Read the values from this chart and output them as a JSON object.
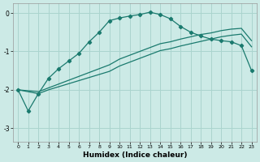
{
  "xlabel": "Humidex (Indice chaleur)",
  "background_color": "#cceae6",
  "grid_color": "#aad4ce",
  "line_color": "#1a7a6e",
  "xlim": [
    -0.5,
    23.5
  ],
  "ylim": [
    -3.35,
    0.25
  ],
  "yticks": [
    0,
    -1,
    -2,
    -3
  ],
  "xticks": [
    0,
    1,
    2,
    3,
    4,
    5,
    6,
    7,
    8,
    9,
    10,
    11,
    12,
    13,
    14,
    15,
    16,
    17,
    18,
    19,
    20,
    21,
    22,
    23
  ],
  "curve_peaked_x": [
    0,
    1,
    2,
    3,
    4,
    5,
    6,
    7,
    8,
    9,
    10,
    11,
    12,
    13,
    14,
    15,
    16,
    17,
    18,
    19,
    20,
    21,
    22,
    23
  ],
  "curve_peaked_y": [
    -2.0,
    -2.55,
    -2.1,
    -1.7,
    -1.45,
    -1.25,
    -1.05,
    -0.75,
    -0.5,
    -0.2,
    -0.13,
    -0.08,
    -0.04,
    0.02,
    -0.04,
    -0.15,
    -0.35,
    -0.5,
    -0.6,
    -0.68,
    -0.72,
    -0.75,
    -0.85,
    -1.5
  ],
  "curve_upper_x": [
    0,
    2,
    3,
    4,
    5,
    6,
    7,
    8,
    9,
    10,
    11,
    12,
    13,
    14,
    15,
    16,
    17,
    18,
    19,
    20,
    21,
    22,
    23
  ],
  "curve_upper_y": [
    -2.0,
    -2.05,
    -1.95,
    -1.85,
    -1.75,
    -1.65,
    -1.55,
    -1.45,
    -1.35,
    -1.2,
    -1.1,
    -1.0,
    -0.9,
    -0.8,
    -0.75,
    -0.68,
    -0.62,
    -0.56,
    -0.52,
    -0.46,
    -0.42,
    -0.4,
    -0.72
  ],
  "curve_lower_x": [
    0,
    2,
    3,
    4,
    5,
    6,
    7,
    8,
    9,
    10,
    11,
    12,
    13,
    14,
    15,
    16,
    17,
    18,
    19,
    20,
    21,
    22,
    23
  ],
  "curve_lower_y": [
    -2.0,
    -2.1,
    -2.0,
    -1.92,
    -1.84,
    -1.76,
    -1.68,
    -1.6,
    -1.52,
    -1.38,
    -1.28,
    -1.18,
    -1.08,
    -0.98,
    -0.93,
    -0.86,
    -0.8,
    -0.74,
    -0.68,
    -0.62,
    -0.58,
    -0.55,
    -0.88
  ]
}
